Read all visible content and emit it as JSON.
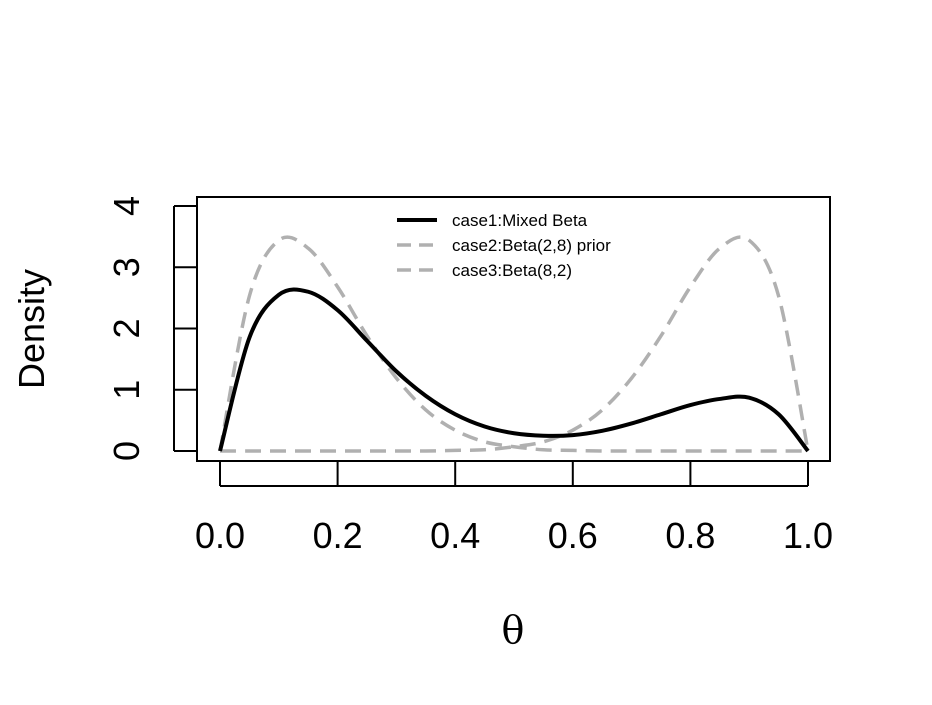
{
  "chart_data": {
    "type": "line",
    "xlabel": "θ",
    "ylabel": "Density",
    "xlim": [
      0,
      1
    ],
    "ylim": [
      0,
      4
    ],
    "x_ticks": [
      0.0,
      0.2,
      0.4,
      0.6,
      0.8,
      1.0
    ],
    "x_tick_labels": [
      "0.0",
      "0.2",
      "0.4",
      "0.6",
      "0.8",
      "1.0"
    ],
    "y_ticks": [
      0,
      1,
      2,
      3,
      4
    ],
    "y_tick_labels": [
      "0",
      "1",
      "2",
      "3",
      "4"
    ],
    "grid": false,
    "legend_position": "top-center",
    "x": [
      0.0,
      0.05,
      0.1,
      0.15,
      0.2,
      0.25,
      0.3,
      0.35,
      0.4,
      0.45,
      0.5,
      0.55,
      0.6,
      0.65,
      0.7,
      0.75,
      0.8,
      0.85,
      0.9,
      0.95,
      1.0
    ],
    "series": [
      {
        "name": "case1:Mixed Beta",
        "color": "#000000",
        "dash": "solid",
        "values": [
          0.0,
          1.85,
          2.55,
          2.6,
          2.3,
          1.8,
          1.3,
          0.9,
          0.6,
          0.4,
          0.29,
          0.25,
          0.26,
          0.33,
          0.45,
          0.6,
          0.75,
          0.85,
          0.87,
          0.6,
          0.0
        ]
      },
      {
        "name": "case2:Beta(2,8) prior",
        "color": "#b0b0b0",
        "dash": "dashed",
        "values": [
          0.0,
          2.53,
          3.44,
          3.31,
          2.68,
          1.88,
          1.19,
          0.67,
          0.34,
          0.15,
          0.07,
          0.02,
          0.01,
          0.0,
          0.0,
          0.0,
          0.0,
          0.0,
          0.0,
          0.0,
          0.0
        ]
      },
      {
        "name": "case3:Beta(8,2)",
        "color": "#b0b0b0",
        "dash": "dashed",
        "values": [
          0.0,
          0.0,
          0.0,
          0.0,
          0.0,
          0.0,
          0.0,
          0.0,
          0.01,
          0.02,
          0.07,
          0.15,
          0.34,
          0.67,
          1.19,
          1.88,
          2.68,
          3.31,
          3.44,
          2.53,
          0.0
        ]
      }
    ]
  }
}
